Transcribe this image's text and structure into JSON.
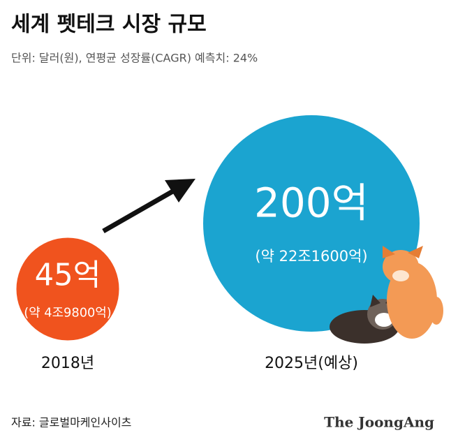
{
  "chart_data": {
    "type": "bubble",
    "title": "세계 펫테크 시장 규모",
    "subtitle": "단위: 달러(원), 연평균 성장률(CAGR) 예측치: 24%",
    "categories": [
      "2018년",
      "2025년(예상)"
    ],
    "series": [
      {
        "values": [
          45,
          200
        ],
        "value_labels": [
          "45억",
          "200억"
        ],
        "sub_labels": [
          "(약 4조9800억)",
          "(약 22조1600억)"
        ],
        "colors": [
          "#f0531e",
          "#1ba4d0"
        ]
      }
    ],
    "source": "자료: 글로벌마케인사이츠",
    "credit": "The JoongAng"
  }
}
